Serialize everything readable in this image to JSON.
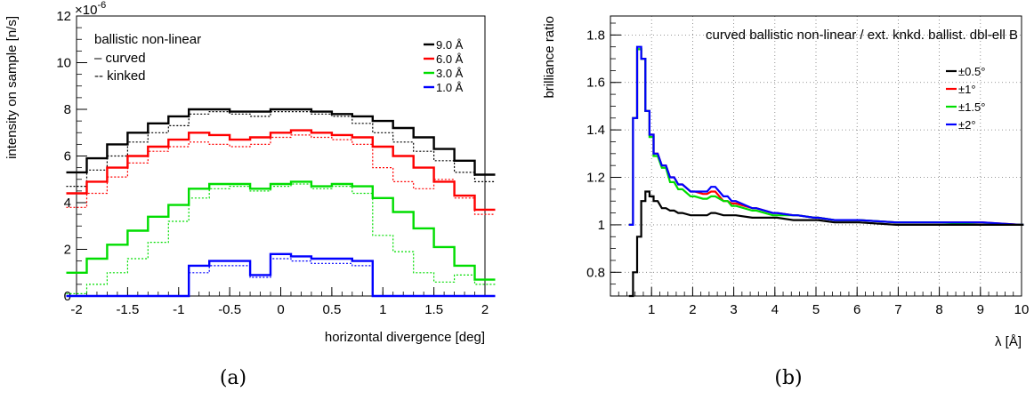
{
  "chart_data": [
    {
      "type": "line",
      "panel_caption": "(a)",
      "xlabel": "horizontal divergence [deg]",
      "ylabel": "intensity on sample [n/s]",
      "y_exponent_label": "×10",
      "y_exponent_power": "-6",
      "xlim": [
        -2,
        2
      ],
      "ylim": [
        0,
        12
      ],
      "x_ticks": [
        -2,
        -1.5,
        -1,
        -0.5,
        0,
        0.5,
        1,
        1.5,
        2
      ],
      "x_tick_labels": [
        "-2",
        "-1.5",
        "-1",
        "-0.5",
        "0",
        "0.5",
        "1",
        "1.5",
        "2"
      ],
      "y_ticks": [
        0,
        2,
        4,
        6,
        8,
        10,
        12
      ],
      "y_tick_labels": [
        "0",
        "2",
        "4",
        "6",
        "8",
        "10",
        "12"
      ],
      "annotation": {
        "title": "ballistic non-linear",
        "curved": "– curved",
        "kinked": "-- kinked"
      },
      "legend": [
        "9.0 Å",
        "6.0 Å",
        "3.0 Å",
        "1.0 Å"
      ],
      "colors": [
        "#000000",
        "#ff0000",
        "#00dd00",
        "#0000ff"
      ],
      "x": [
        -2.0,
        -1.8,
        -1.6,
        -1.4,
        -1.2,
        -1.0,
        -0.8,
        -0.6,
        -0.4,
        -0.2,
        0.0,
        0.2,
        0.4,
        0.6,
        0.8,
        1.0,
        1.2,
        1.4,
        1.6,
        1.8,
        2.0
      ],
      "series": [
        {
          "name": "9.0 Å",
          "style": "solid",
          "values": [
            5.3,
            5.9,
            6.5,
            7.0,
            7.4,
            7.7,
            8.0,
            8.0,
            7.9,
            7.9,
            8.0,
            8.0,
            7.9,
            7.8,
            7.7,
            7.5,
            7.2,
            6.8,
            6.3,
            5.8,
            5.2
          ]
        },
        {
          "name": "9.0 Å",
          "style": "dotted",
          "values": [
            4.7,
            5.4,
            6.0,
            6.6,
            7.0,
            7.3,
            7.8,
            7.9,
            7.8,
            7.7,
            7.9,
            7.9,
            7.8,
            7.7,
            7.4,
            7.0,
            6.6,
            6.2,
            5.8,
            5.3,
            4.9
          ]
        },
        {
          "name": "6.0 Å",
          "style": "solid",
          "values": [
            4.4,
            4.9,
            5.5,
            6.0,
            6.4,
            6.7,
            7.0,
            6.9,
            6.7,
            6.8,
            7.0,
            7.1,
            7.0,
            6.9,
            6.8,
            6.4,
            6.0,
            5.5,
            4.9,
            4.3,
            3.7
          ]
        },
        {
          "name": "6.0 Å",
          "style": "dotted",
          "values": [
            3.8,
            4.4,
            5.1,
            5.7,
            6.2,
            6.4,
            6.6,
            6.5,
            6.4,
            6.5,
            6.8,
            6.9,
            6.8,
            6.7,
            6.5,
            5.5,
            4.9,
            4.6,
            5.0,
            4.2,
            3.5
          ]
        },
        {
          "name": "3.0 Å",
          "style": "solid",
          "values": [
            1.0,
            1.6,
            2.2,
            2.8,
            3.4,
            3.9,
            4.6,
            4.8,
            4.8,
            4.6,
            4.8,
            4.9,
            4.7,
            4.8,
            4.7,
            4.2,
            3.6,
            2.9,
            2.1,
            1.3,
            0.7
          ]
        },
        {
          "name": "3.0 Å",
          "style": "dotted",
          "values": [
            0.1,
            0.5,
            1.0,
            1.6,
            2.3,
            3.2,
            4.2,
            4.6,
            4.7,
            4.5,
            4.7,
            4.8,
            4.6,
            4.7,
            4.4,
            2.6,
            1.9,
            1.0,
            0.6,
            0.9,
            0.5
          ]
        },
        {
          "name": "1.0 Å",
          "style": "solid",
          "values": [
            0,
            0,
            0,
            0,
            0,
            0,
            1.3,
            1.5,
            1.5,
            0.9,
            1.8,
            1.7,
            1.6,
            1.6,
            1.5,
            0,
            0,
            0,
            0,
            0,
            0
          ]
        },
        {
          "name": "1.0 Å",
          "style": "dotted",
          "values": [
            0,
            0,
            0,
            0,
            0,
            0,
            1.0,
            1.3,
            1.3,
            0.8,
            1.6,
            1.5,
            1.4,
            1.4,
            1.3,
            0,
            0,
            0,
            0,
            0,
            0
          ]
        }
      ]
    },
    {
      "type": "line",
      "panel_caption": "(b)",
      "title": "curved ballistic non-linear / ext. knkd. ballist. dbl-ell B",
      "xlabel": "λ [Å]",
      "ylabel": "brilliance ratio",
      "xlim": [
        0,
        10
      ],
      "ylim": [
        0.7,
        1.88
      ],
      "x_ticks": [
        1,
        2,
        3,
        4,
        5,
        6,
        7,
        8,
        9,
        10
      ],
      "x_tick_labels": [
        "1",
        "2",
        "3",
        "4",
        "5",
        "6",
        "7",
        "8",
        "9",
        "10"
      ],
      "y_ticks": [
        0.8,
        1,
        1.2,
        1.4,
        1.6,
        1.8
      ],
      "y_tick_labels": [
        "0.8",
        "1",
        "1.2",
        "1.4",
        "1.6",
        "1.8"
      ],
      "grid": true,
      "legend": [
        "±0.5°",
        "±1°",
        "±1.5°",
        "±2°"
      ],
      "colors": [
        "#000000",
        "#ff0000",
        "#00dd00",
        "#0000ff"
      ],
      "x": [
        0.5,
        0.6,
        0.7,
        0.8,
        0.9,
        1.0,
        1.1,
        1.3,
        1.5,
        1.7,
        2.0,
        2.3,
        2.5,
        2.8,
        3.0,
        3.5,
        4.0,
        4.5,
        5.0,
        5.5,
        6.0,
        7.0,
        8.0,
        9.0,
        10.0
      ],
      "series": [
        {
          "name": "±0.5°",
          "values": [
            0.7,
            0.8,
            0.95,
            1.1,
            1.14,
            1.12,
            1.1,
            1.07,
            1.06,
            1.05,
            1.04,
            1.04,
            1.05,
            1.04,
            1.04,
            1.03,
            1.03,
            1.02,
            1.02,
            1.01,
            1.01,
            1.0,
            1.0,
            1.0,
            1.0
          ]
        },
        {
          "name": "±1°",
          "values": [
            1.0,
            1.45,
            1.74,
            1.7,
            1.48,
            1.38,
            1.3,
            1.25,
            1.2,
            1.17,
            1.14,
            1.13,
            1.14,
            1.1,
            1.09,
            1.07,
            1.05,
            1.04,
            1.03,
            1.02,
            1.02,
            1.01,
            1.01,
            1.01,
            1.0
          ]
        },
        {
          "name": "±1.5°",
          "values": [
            1.0,
            1.45,
            1.74,
            1.7,
            1.48,
            1.37,
            1.29,
            1.24,
            1.18,
            1.15,
            1.12,
            1.11,
            1.12,
            1.1,
            1.08,
            1.06,
            1.04,
            1.04,
            1.03,
            1.02,
            1.02,
            1.01,
            1.01,
            1.0,
            1.0
          ]
        },
        {
          "name": "±2°",
          "values": [
            1.0,
            1.45,
            1.75,
            1.7,
            1.48,
            1.38,
            1.3,
            1.25,
            1.2,
            1.17,
            1.14,
            1.14,
            1.16,
            1.12,
            1.1,
            1.07,
            1.05,
            1.04,
            1.03,
            1.02,
            1.02,
            1.01,
            1.01,
            1.01,
            1.0
          ]
        }
      ]
    }
  ]
}
